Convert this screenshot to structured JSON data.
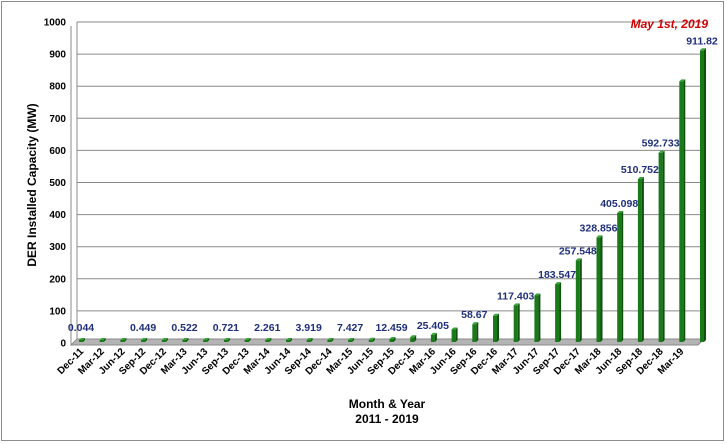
{
  "chart_data": {
    "type": "bar",
    "title": "",
    "annotation": "May 1st, 2019",
    "xlabel": "Month & Year",
    "xlabel_sub": "2011 - 2019",
    "ylabel": "DER Installed Capacity (MW)",
    "ylim": [
      0,
      1000
    ],
    "yticks": [
      0,
      100,
      200,
      300,
      400,
      500,
      600,
      700,
      800,
      900,
      1000
    ],
    "grid": true,
    "bar_color": "#1a7a1a",
    "label_color": "#1f2f7a",
    "annotation_color": "#d00000",
    "categories": [
      "Dec-11",
      "Mar-12",
      "Jun-12",
      "Sep-12",
      "Dec-12",
      "Mar-13",
      "Jun-13",
      "Sep-13",
      "Dec-13",
      "Mar-14",
      "Jun-14",
      "Sep-14",
      "Dec-14",
      "Mar-15",
      "Jun-15",
      "Sep-15",
      "Dec-15",
      "Mar-16",
      "Jun-16",
      "Sep-16",
      "Dec-16",
      "Mar-17",
      "Jun-17",
      "Sep-17",
      "Dec-17",
      "Mar-18",
      "Jun-18",
      "Sep-18",
      "Dec-18",
      "Mar-19",
      "May-19"
    ],
    "values": [
      0.044,
      0.15,
      0.3,
      0.449,
      0.48,
      0.522,
      0.6,
      0.721,
      1.2,
      2.261,
      3.0,
      3.919,
      5.5,
      7.427,
      10.0,
      12.459,
      18.0,
      25.405,
      42.0,
      58.67,
      85.0,
      117.403,
      148.0,
      183.547,
      257.548,
      328.856,
      405.098,
      510.752,
      592.733,
      815.0,
      911.82
    ],
    "data_labels": [
      {
        "index": 0,
        "text": "0.044"
      },
      {
        "index": 3,
        "text": "0.449"
      },
      {
        "index": 5,
        "text": "0.522"
      },
      {
        "index": 7,
        "text": "0.721"
      },
      {
        "index": 9,
        "text": "2.261"
      },
      {
        "index": 11,
        "text": "3.919"
      },
      {
        "index": 13,
        "text": "7.427"
      },
      {
        "index": 15,
        "text": "12.459"
      },
      {
        "index": 17,
        "text": "25.405"
      },
      {
        "index": 19,
        "text": "58.67"
      },
      {
        "index": 21,
        "text": "117.403"
      },
      {
        "index": 23,
        "text": "183.547"
      },
      {
        "index": 24,
        "text": "257.548"
      },
      {
        "index": 25,
        "text": "328.856"
      },
      {
        "index": 26,
        "text": "405.098"
      },
      {
        "index": 27,
        "text": "510.752"
      },
      {
        "index": 28,
        "text": "592.733"
      },
      {
        "index": 30,
        "text": "911.82"
      }
    ],
    "x_tick_labels": [
      "Dec-11",
      "Mar-12",
      "Jun-12",
      "Sep-12",
      "Dec-12",
      "Mar-13",
      "Jun-13",
      "Sep-13",
      "Dec-13",
      "Mar-14",
      "Jun-14",
      "Sep-14",
      "Dec-14",
      "Mar-15",
      "Jun-15",
      "Sep-15",
      "Dec-15",
      "Mar-16",
      "Jun-16",
      "Sep-16",
      "Dec-16",
      "Mar-17",
      "Jun-17",
      "Sep-17",
      "Dec-17",
      "Mar-18",
      "Jun-18",
      "Sep-18",
      "Dec-18",
      "Mar-19"
    ]
  }
}
